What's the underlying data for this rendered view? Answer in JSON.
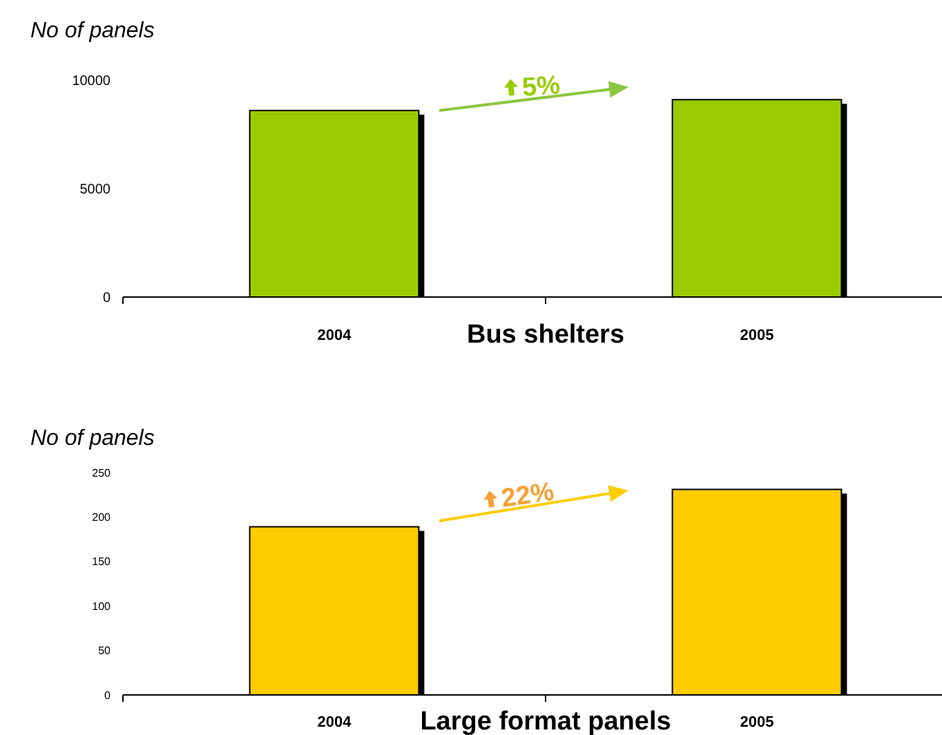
{
  "chart_data": [
    {
      "type": "bar",
      "ylabel": "No of panels",
      "xlabel": "Bus shelters",
      "categories": [
        "2004",
        "2005"
      ],
      "series": [
        {
          "color": "#99cc00",
          "values": [
            8600,
            9100
          ]
        }
      ],
      "ylim": [
        0,
        10000
      ],
      "yticks": [
        0,
        5000,
        10000
      ],
      "annotations": [
        "5%"
      ]
    },
    {
      "type": "bar",
      "ylabel": "No of panels",
      "xlabel": "Large format panels",
      "categories": [
        "2004",
        "2005"
      ],
      "series": [
        {
          "color": "#ffcc00",
          "values": [
            189,
            231
          ]
        }
      ],
      "ylim": [
        0,
        250
      ],
      "yticks": [
        0,
        50,
        100,
        150,
        200,
        250
      ],
      "annotations": [
        "22%"
      ]
    }
  ]
}
